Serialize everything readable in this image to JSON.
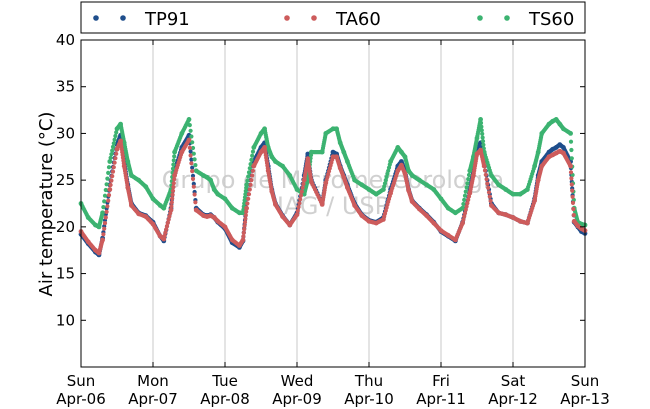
{
  "chart_data": {
    "type": "scatter",
    "ylabel": "Air temperature (°C)",
    "ylim": [
      5,
      40
    ],
    "yticks": [
      10,
      15,
      20,
      25,
      30,
      35,
      40
    ],
    "xlim": [
      0,
      7
    ],
    "x_unit": "days",
    "xticks": [
      {
        "day": "Sun",
        "date": "Apr-06"
      },
      {
        "day": "Mon",
        "date": "Apr-07"
      },
      {
        "day": "Tue",
        "date": "Apr-08"
      },
      {
        "day": "Wed",
        "date": "Apr-09"
      },
      {
        "day": "Thu",
        "date": "Apr-10"
      },
      {
        "day": "Fri",
        "date": "Apr-11"
      },
      {
        "day": "Sat",
        "date": "Apr-12"
      },
      {
        "day": "Sun",
        "date": "Apr-13"
      }
    ],
    "grid": "vertical",
    "legend": "top",
    "watermark": [
      "Grupo de Micrometeorologia",
      "IAG / USP"
    ],
    "series": [
      {
        "name": "TP91",
        "color": "#1f4e8c",
        "x": [
          0,
          0.1,
          0.2,
          0.25,
          0.3,
          0.4,
          0.5,
          0.55,
          0.6,
          0.65,
          0.7,
          0.8,
          0.9,
          1.0,
          1.1,
          1.15,
          1.25,
          1.3,
          1.4,
          1.5,
          1.6,
          1.7,
          1.75,
          1.8,
          1.85,
          1.9,
          2.0,
          2.1,
          2.2,
          2.25,
          2.3,
          2.4,
          2.5,
          2.55,
          2.6,
          2.65,
          2.7,
          2.8,
          2.9,
          3.0,
          3.1,
          3.15,
          3.2,
          3.35,
          3.4,
          3.5,
          3.55,
          3.6,
          3.65,
          3.7,
          3.8,
          3.9,
          4.0,
          4.1,
          4.2,
          4.3,
          4.4,
          4.45,
          4.5,
          4.55,
          4.6,
          4.7,
          4.8,
          4.9,
          5.0,
          5.1,
          5.2,
          5.3,
          5.4,
          5.45,
          5.5,
          5.55,
          5.6,
          5.7,
          5.8,
          5.9,
          6.0,
          6.1,
          6.2,
          6.3,
          6.35,
          6.4,
          6.5,
          6.55,
          6.6,
          6.65,
          6.7,
          6.8,
          6.85,
          6.9,
          6.95,
          7.0
        ],
        "y": [
          19.2,
          18.2,
          17.3,
          17.0,
          18.8,
          24.5,
          28.8,
          29.8,
          27.0,
          24.5,
          22.5,
          21.5,
          21.2,
          20.5,
          19.0,
          18.5,
          22.0,
          26.0,
          28.5,
          29.8,
          22.0,
          21.3,
          21.2,
          21.3,
          21.0,
          20.5,
          19.8,
          18.3,
          17.8,
          18.5,
          22.5,
          27.0,
          28.5,
          29.0,
          26.5,
          24.0,
          22.5,
          21.2,
          20.2,
          21.5,
          25.5,
          27.8,
          25.0,
          22.5,
          25.0,
          28.0,
          27.8,
          26.5,
          25.5,
          24.5,
          22.5,
          21.3,
          20.7,
          20.5,
          21.0,
          24.0,
          26.5,
          27.0,
          26.0,
          24.0,
          22.8,
          22.0,
          21.3,
          20.5,
          19.5,
          19.0,
          18.5,
          20.5,
          24.0,
          26.0,
          28.5,
          29.0,
          27.0,
          22.5,
          21.5,
          21.3,
          21.0,
          20.6,
          20.4,
          23.0,
          25.5,
          27.0,
          28.0,
          28.3,
          28.5,
          28.8,
          28.5,
          27.0,
          20.5,
          20.0,
          19.5,
          19.3
        ]
      },
      {
        "name": "TA60",
        "color": "#cd5c5c",
        "x": [
          0,
          0.1,
          0.2,
          0.25,
          0.3,
          0.4,
          0.5,
          0.55,
          0.6,
          0.65,
          0.7,
          0.8,
          0.9,
          1.0,
          1.1,
          1.15,
          1.25,
          1.3,
          1.4,
          1.5,
          1.6,
          1.7,
          1.75,
          1.8,
          1.85,
          1.9,
          2.0,
          2.1,
          2.2,
          2.25,
          2.3,
          2.4,
          2.5,
          2.55,
          2.6,
          2.65,
          2.7,
          2.8,
          2.9,
          3.0,
          3.1,
          3.15,
          3.2,
          3.35,
          3.4,
          3.5,
          3.55,
          3.6,
          3.65,
          3.7,
          3.8,
          3.9,
          4.0,
          4.1,
          4.2,
          4.3,
          4.4,
          4.45,
          4.5,
          4.55,
          4.6,
          4.7,
          4.8,
          4.9,
          5.0,
          5.1,
          5.2,
          5.3,
          5.4,
          5.45,
          5.5,
          5.55,
          5.6,
          5.7,
          5.8,
          5.9,
          6.0,
          6.1,
          6.2,
          6.3,
          6.35,
          6.4,
          6.5,
          6.55,
          6.6,
          6.65,
          6.7,
          6.8,
          6.85,
          6.9,
          6.95,
          7.0
        ],
        "y": [
          19.5,
          18.4,
          17.5,
          17.2,
          18.6,
          24.0,
          28.3,
          29.2,
          26.5,
          24.2,
          22.3,
          21.4,
          21.1,
          20.3,
          19.0,
          18.7,
          21.8,
          25.5,
          28.0,
          29.3,
          21.8,
          21.2,
          21.1,
          21.2,
          21.0,
          20.6,
          20.0,
          18.6,
          18.0,
          18.6,
          22.0,
          26.5,
          28.0,
          28.5,
          26.0,
          23.8,
          22.4,
          21.1,
          20.2,
          21.3,
          25.0,
          27.3,
          24.8,
          22.4,
          24.7,
          27.5,
          27.5,
          26.3,
          25.3,
          24.2,
          22.3,
          21.2,
          20.6,
          20.4,
          20.8,
          23.6,
          26.0,
          26.6,
          25.7,
          23.9,
          22.7,
          21.9,
          21.2,
          20.4,
          19.6,
          19.1,
          18.6,
          20.4,
          23.6,
          25.5,
          27.8,
          28.2,
          26.5,
          22.3,
          21.5,
          21.3,
          21.0,
          20.6,
          20.4,
          22.8,
          25.0,
          26.5,
          27.5,
          27.7,
          27.9,
          28.1,
          27.9,
          26.5,
          20.6,
          20.1,
          19.8,
          19.6
        ]
      },
      {
        "name": "TS60",
        "color": "#3cb371",
        "x": [
          0,
          0.1,
          0.2,
          0.25,
          0.3,
          0.4,
          0.5,
          0.55,
          0.6,
          0.65,
          0.7,
          0.8,
          0.9,
          1.0,
          1.1,
          1.15,
          1.25,
          1.3,
          1.4,
          1.5,
          1.6,
          1.7,
          1.75,
          1.8,
          1.85,
          1.9,
          2.0,
          2.1,
          2.2,
          2.25,
          2.3,
          2.4,
          2.5,
          2.55,
          2.6,
          2.65,
          2.7,
          2.8,
          2.9,
          3.0,
          3.1,
          3.15,
          3.2,
          3.35,
          3.4,
          3.5,
          3.55,
          3.6,
          3.65,
          3.7,
          3.8,
          3.9,
          4.0,
          4.1,
          4.2,
          4.3,
          4.4,
          4.45,
          4.5,
          4.55,
          4.6,
          4.7,
          4.8,
          4.9,
          5.0,
          5.1,
          5.2,
          5.3,
          5.4,
          5.45,
          5.5,
          5.55,
          5.6,
          5.7,
          5.8,
          5.9,
          6.0,
          6.1,
          6.2,
          6.3,
          6.35,
          6.4,
          6.5,
          6.55,
          6.6,
          6.65,
          6.7,
          6.8,
          6.85,
          6.9,
          6.95,
          7.0
        ],
        "y": [
          22.5,
          21.0,
          20.2,
          20.0,
          21.5,
          27.0,
          30.5,
          31.0,
          29.0,
          27.0,
          25.5,
          25.0,
          24.3,
          23.0,
          22.3,
          22.0,
          24.0,
          28.0,
          30.0,
          31.5,
          26.0,
          25.5,
          25.3,
          25.0,
          24.0,
          23.5,
          23.0,
          22.0,
          21.5,
          21.5,
          24.5,
          28.5,
          30.0,
          30.5,
          28.5,
          27.5,
          27.0,
          26.5,
          25.5,
          24.0,
          23.5,
          25.0,
          28.0,
          28.0,
          30.0,
          30.5,
          30.5,
          29.0,
          28.0,
          27.0,
          25.0,
          24.5,
          24.0,
          23.5,
          24.0,
          27.0,
          28.5,
          28.0,
          27.5,
          26.0,
          25.5,
          25.0,
          24.5,
          24.0,
          23.0,
          22.0,
          21.5,
          22.0,
          26.0,
          27.5,
          29.5,
          31.5,
          28.0,
          25.5,
          24.5,
          24.0,
          23.5,
          23.5,
          24.0,
          26.5,
          28.0,
          30.0,
          31.0,
          31.3,
          31.5,
          31.0,
          30.5,
          30.0,
          22.0,
          20.5,
          20.3,
          20.2
        ]
      }
    ]
  }
}
